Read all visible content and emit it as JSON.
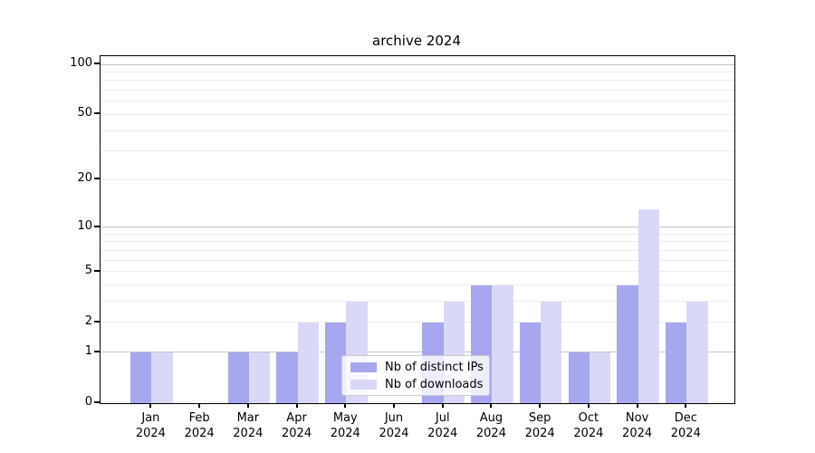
{
  "chart_data": {
    "type": "bar",
    "title": "archive 2024",
    "categories": [
      "Jan",
      "Feb",
      "Mar",
      "Apr",
      "May",
      "Jun",
      "Jul",
      "Aug",
      "Sep",
      "Oct",
      "Nov",
      "Dec"
    ],
    "category_year": "2024",
    "series": [
      {
        "name": "Nb of distinct IPs",
        "color": "#a7a7ef",
        "values": [
          1,
          0,
          1,
          1,
          2,
          0,
          2,
          4,
          2,
          1,
          4,
          2
        ]
      },
      {
        "name": "Nb of downloads",
        "color": "#d9d9f7",
        "values": [
          1,
          0,
          1,
          2,
          3,
          0,
          3,
          4,
          3,
          1,
          13,
          3
        ]
      }
    ],
    "yscale": "log1p",
    "ylim": [
      0,
      112
    ],
    "y_ticks": [
      0,
      1,
      2,
      5,
      10,
      20,
      50,
      100
    ],
    "y_major_gridlines": [
      1,
      10,
      100
    ],
    "y_minor_gridlines": [
      2,
      3,
      4,
      5,
      6,
      7,
      8,
      9,
      20,
      30,
      40,
      50,
      60,
      70,
      80,
      90
    ],
    "grid": true,
    "legend_position": "lower center",
    "colors": {
      "major_grid": "#c4c4c4",
      "minor_grid": "#ececec",
      "spine": "#000000",
      "legend_border": "#cccccc"
    }
  }
}
